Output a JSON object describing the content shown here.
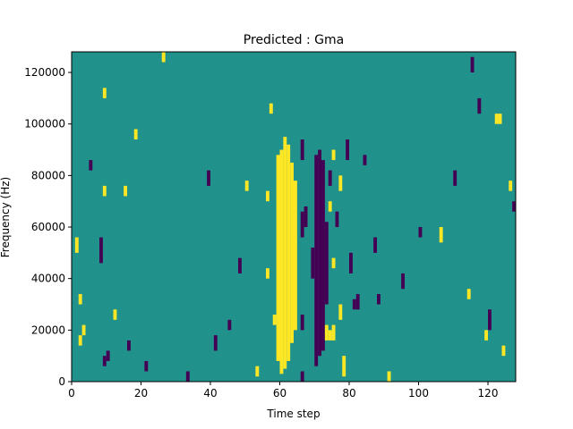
{
  "chart_data": {
    "type": "heatmap",
    "title": "Predicted : Gma",
    "xlabel": "Time step",
    "ylabel": "Frequency (Hz)",
    "xlim": [
      0,
      128
    ],
    "ylim": [
      0,
      128000
    ],
    "x_ticks": [
      {
        "value": 0,
        "label": "0"
      },
      {
        "value": 20,
        "label": "20"
      },
      {
        "value": 40,
        "label": "40"
      },
      {
        "value": 60,
        "label": "60"
      },
      {
        "value": 80,
        "label": "80"
      },
      {
        "value": 100,
        "label": "100"
      },
      {
        "value": 120,
        "label": "120"
      }
    ],
    "y_ticks": [
      {
        "value": 0,
        "label": "0"
      },
      {
        "value": 20000,
        "label": "20000"
      },
      {
        "value": 40000,
        "label": "40000"
      },
      {
        "value": 60000,
        "label": "60000"
      },
      {
        "value": 80000,
        "label": "80000"
      },
      {
        "value": 100000,
        "label": "100000"
      },
      {
        "value": 120000,
        "label": "120000"
      }
    ],
    "colormap": {
      "background": "#21918c",
      "high": "#fde725",
      "low": "#440154"
    },
    "y_bin_hz": 1000,
    "cells": [
      {
        "x": 59,
        "y0": 8000,
        "y1": 88000,
        "v": 1
      },
      {
        "x": 60,
        "y0": 3000,
        "y1": 90000,
        "v": 1
      },
      {
        "x": 61,
        "y0": 5000,
        "y1": 95000,
        "v": 1
      },
      {
        "x": 62,
        "y0": 8000,
        "y1": 92000,
        "v": 1
      },
      {
        "x": 63,
        "y0": 15000,
        "y1": 85000,
        "v": 1
      },
      {
        "x": 64,
        "y0": 20000,
        "y1": 78000,
        "v": 1
      },
      {
        "x": 58,
        "y0": 22000,
        "y1": 26000,
        "v": 1
      },
      {
        "x": 56,
        "y0": 70000,
        "y1": 74000,
        "v": 1
      },
      {
        "x": 56,
        "y0": 40000,
        "y1": 44000,
        "v": 1
      },
      {
        "x": 57,
        "y0": 104000,
        "y1": 108000,
        "v": 1
      },
      {
        "x": 66,
        "y0": 0,
        "y1": 4000,
        "v": -1
      },
      {
        "x": 66,
        "y0": 20000,
        "y1": 26000,
        "v": -1
      },
      {
        "x": 66,
        "y0": 56000,
        "y1": 66000,
        "v": -1
      },
      {
        "x": 66,
        "y0": 86000,
        "y1": 94000,
        "v": -1
      },
      {
        "x": 67,
        "y0": 60000,
        "y1": 68000,
        "v": -1
      },
      {
        "x": 69,
        "y0": 40000,
        "y1": 52000,
        "v": -1
      },
      {
        "x": 70,
        "y0": 6000,
        "y1": 88000,
        "v": -1
      },
      {
        "x": 71,
        "y0": 10000,
        "y1": 90000,
        "v": -1
      },
      {
        "x": 72,
        "y0": 12000,
        "y1": 86000,
        "v": -1
      },
      {
        "x": 73,
        "y0": 30000,
        "y1": 62000,
        "v": -1
      },
      {
        "x": 74,
        "y0": 76000,
        "y1": 82000,
        "v": -1
      },
      {
        "x": 74,
        "y0": 16000,
        "y1": 20000,
        "v": 1
      },
      {
        "x": 73,
        "y0": 16000,
        "y1": 22000,
        "v": 1
      },
      {
        "x": 75,
        "y0": 16000,
        "y1": 22000,
        "v": 1
      },
      {
        "x": 74,
        "y0": 66000,
        "y1": 70000,
        "v": 1
      },
      {
        "x": 75,
        "y0": 44000,
        "y1": 48000,
        "v": 1
      },
      {
        "x": 75,
        "y0": 86000,
        "y1": 90000,
        "v": 1
      },
      {
        "x": 76,
        "y0": 60000,
        "y1": 66000,
        "v": -1
      },
      {
        "x": 77,
        "y0": 74000,
        "y1": 80000,
        "v": 1
      },
      {
        "x": 77,
        "y0": 24000,
        "y1": 30000,
        "v": 1
      },
      {
        "x": 78,
        "y0": 2000,
        "y1": 10000,
        "v": 1
      },
      {
        "x": 79,
        "y0": 86000,
        "y1": 94000,
        "v": -1
      },
      {
        "x": 80,
        "y0": 42000,
        "y1": 50000,
        "v": -1
      },
      {
        "x": 81,
        "y0": 28000,
        "y1": 32000,
        "v": -1
      },
      {
        "x": 82,
        "y0": 28000,
        "y1": 34000,
        "v": -1
      },
      {
        "x": 87,
        "y0": 50000,
        "y1": 56000,
        "v": -1
      },
      {
        "x": 84,
        "y0": 84000,
        "y1": 88000,
        "v": -1
      },
      {
        "x": 88,
        "y0": 30000,
        "y1": 34000,
        "v": -1
      },
      {
        "x": 2,
        "y0": 30000,
        "y1": 34000,
        "v": 1
      },
      {
        "x": 1,
        "y0": 50000,
        "y1": 56000,
        "v": 1
      },
      {
        "x": 3,
        "y0": 18000,
        "y1": 22000,
        "v": 1
      },
      {
        "x": 2,
        "y0": 14000,
        "y1": 18000,
        "v": 1
      },
      {
        "x": 5,
        "y0": 82000,
        "y1": 86000,
        "v": -1
      },
      {
        "x": 8,
        "y0": 46000,
        "y1": 56000,
        "v": -1
      },
      {
        "x": 9,
        "y0": 6000,
        "y1": 10000,
        "v": -1
      },
      {
        "x": 10,
        "y0": 8000,
        "y1": 12000,
        "v": -1
      },
      {
        "x": 9,
        "y0": 72000,
        "y1": 76000,
        "v": 1
      },
      {
        "x": 9,
        "y0": 110000,
        "y1": 114000,
        "v": 1
      },
      {
        "x": 12,
        "y0": 24000,
        "y1": 28000,
        "v": 1
      },
      {
        "x": 16,
        "y0": 12000,
        "y1": 16000,
        "v": -1
      },
      {
        "x": 15,
        "y0": 72000,
        "y1": 76000,
        "v": 1
      },
      {
        "x": 18,
        "y0": 94000,
        "y1": 98000,
        "v": 1
      },
      {
        "x": 21,
        "y0": 4000,
        "y1": 8000,
        "v": -1
      },
      {
        "x": 26,
        "y0": 124000,
        "y1": 128000,
        "v": 1
      },
      {
        "x": 33,
        "y0": 0,
        "y1": 4000,
        "v": -1
      },
      {
        "x": 39,
        "y0": 76000,
        "y1": 82000,
        "v": -1
      },
      {
        "x": 41,
        "y0": 12000,
        "y1": 18000,
        "v": -1
      },
      {
        "x": 45,
        "y0": 20000,
        "y1": 24000,
        "v": -1
      },
      {
        "x": 48,
        "y0": 42000,
        "y1": 48000,
        "v": -1
      },
      {
        "x": 50,
        "y0": 74000,
        "y1": 78000,
        "v": 1
      },
      {
        "x": 53,
        "y0": 2000,
        "y1": 6000,
        "v": 1
      },
      {
        "x": 91,
        "y0": 0,
        "y1": 4000,
        "v": 1
      },
      {
        "x": 95,
        "y0": 36000,
        "y1": 42000,
        "v": -1
      },
      {
        "x": 100,
        "y0": 56000,
        "y1": 60000,
        "v": -1
      },
      {
        "x": 106,
        "y0": 54000,
        "y1": 60000,
        "v": 1
      },
      {
        "x": 110,
        "y0": 76000,
        "y1": 82000,
        "v": -1
      },
      {
        "x": 114,
        "y0": 32000,
        "y1": 36000,
        "v": 1
      },
      {
        "x": 115,
        "y0": 120000,
        "y1": 126000,
        "v": -1
      },
      {
        "x": 117,
        "y0": 104000,
        "y1": 110000,
        "v": -1
      },
      {
        "x": 119,
        "y0": 16000,
        "y1": 20000,
        "v": 1
      },
      {
        "x": 120,
        "y0": 20000,
        "y1": 28000,
        "v": -1
      },
      {
        "x": 122,
        "y0": 100000,
        "y1": 104000,
        "v": 1
      },
      {
        "x": 123,
        "y0": 100000,
        "y1": 104000,
        "v": 1
      },
      {
        "x": 124,
        "y0": 10000,
        "y1": 14000,
        "v": 1
      },
      {
        "x": 126,
        "y0": 74000,
        "y1": 78000,
        "v": 1
      },
      {
        "x": 127,
        "y0": 66000,
        "y1": 70000,
        "v": -1
      }
    ]
  }
}
